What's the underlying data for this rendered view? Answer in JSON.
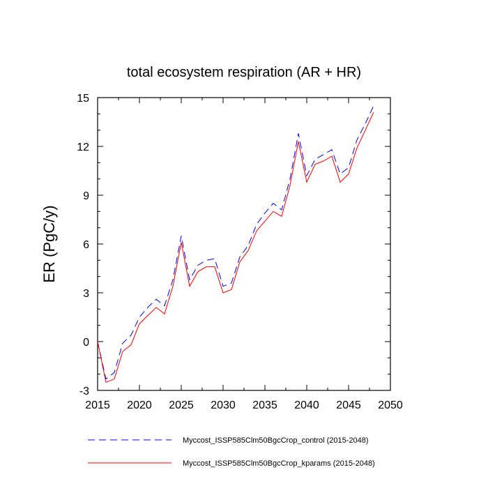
{
  "chart_data": {
    "type": "line",
    "title": "total ecosystem respiration (AR + HR)",
    "xlabel": "",
    "ylabel": "ER  (PgC/y)",
    "xlim": [
      2015,
      2050
    ],
    "ylim": [
      -3,
      15
    ],
    "xticks": [
      2015,
      2020,
      2025,
      2030,
      2035,
      2040,
      2045,
      2050
    ],
    "yticks": [
      -3,
      0,
      3,
      6,
      9,
      12,
      15
    ],
    "grid": false,
    "legend_position": "bottom",
    "x": [
      2015,
      2016,
      2017,
      2018,
      2019,
      2020,
      2021,
      2022,
      2023,
      2024,
      2025,
      2026,
      2027,
      2028,
      2029,
      2030,
      2031,
      2032,
      2033,
      2034,
      2035,
      2036,
      2037,
      2038,
      2039,
      2040,
      2041,
      2042,
      2043,
      2044,
      2045,
      2046,
      2047,
      2048
    ],
    "series": [
      {
        "name": "Myccost_ISSP585Clm50BgcCrop_control (2015-2048)",
        "color": "#0000ff",
        "style": "dashed",
        "values": [
          0.0,
          -2.3,
          -1.9,
          -0.1,
          0.4,
          1.5,
          2.1,
          2.6,
          2.2,
          3.8,
          6.5,
          3.8,
          4.7,
          5.0,
          5.1,
          3.4,
          3.6,
          5.2,
          5.9,
          7.2,
          7.9,
          8.5,
          8.1,
          10.0,
          12.8,
          10.2,
          11.2,
          11.5,
          11.8,
          10.3,
          10.7,
          12.4,
          13.4,
          14.5
        ]
      },
      {
        "name": "Myccost_ISSP585Clm50BgcCrop_kparams (2015-2048)",
        "color": "#ff0000",
        "style": "solid",
        "values": [
          0.0,
          -2.5,
          -2.3,
          -0.6,
          -0.2,
          1.1,
          1.6,
          2.1,
          1.7,
          3.4,
          6.1,
          3.4,
          4.3,
          4.6,
          4.6,
          3.0,
          3.2,
          4.9,
          5.6,
          6.8,
          7.4,
          8.0,
          7.7,
          9.6,
          12.3,
          9.8,
          10.9,
          11.1,
          11.4,
          9.8,
          10.3,
          11.9,
          13.0,
          14.1
        ]
      }
    ]
  }
}
